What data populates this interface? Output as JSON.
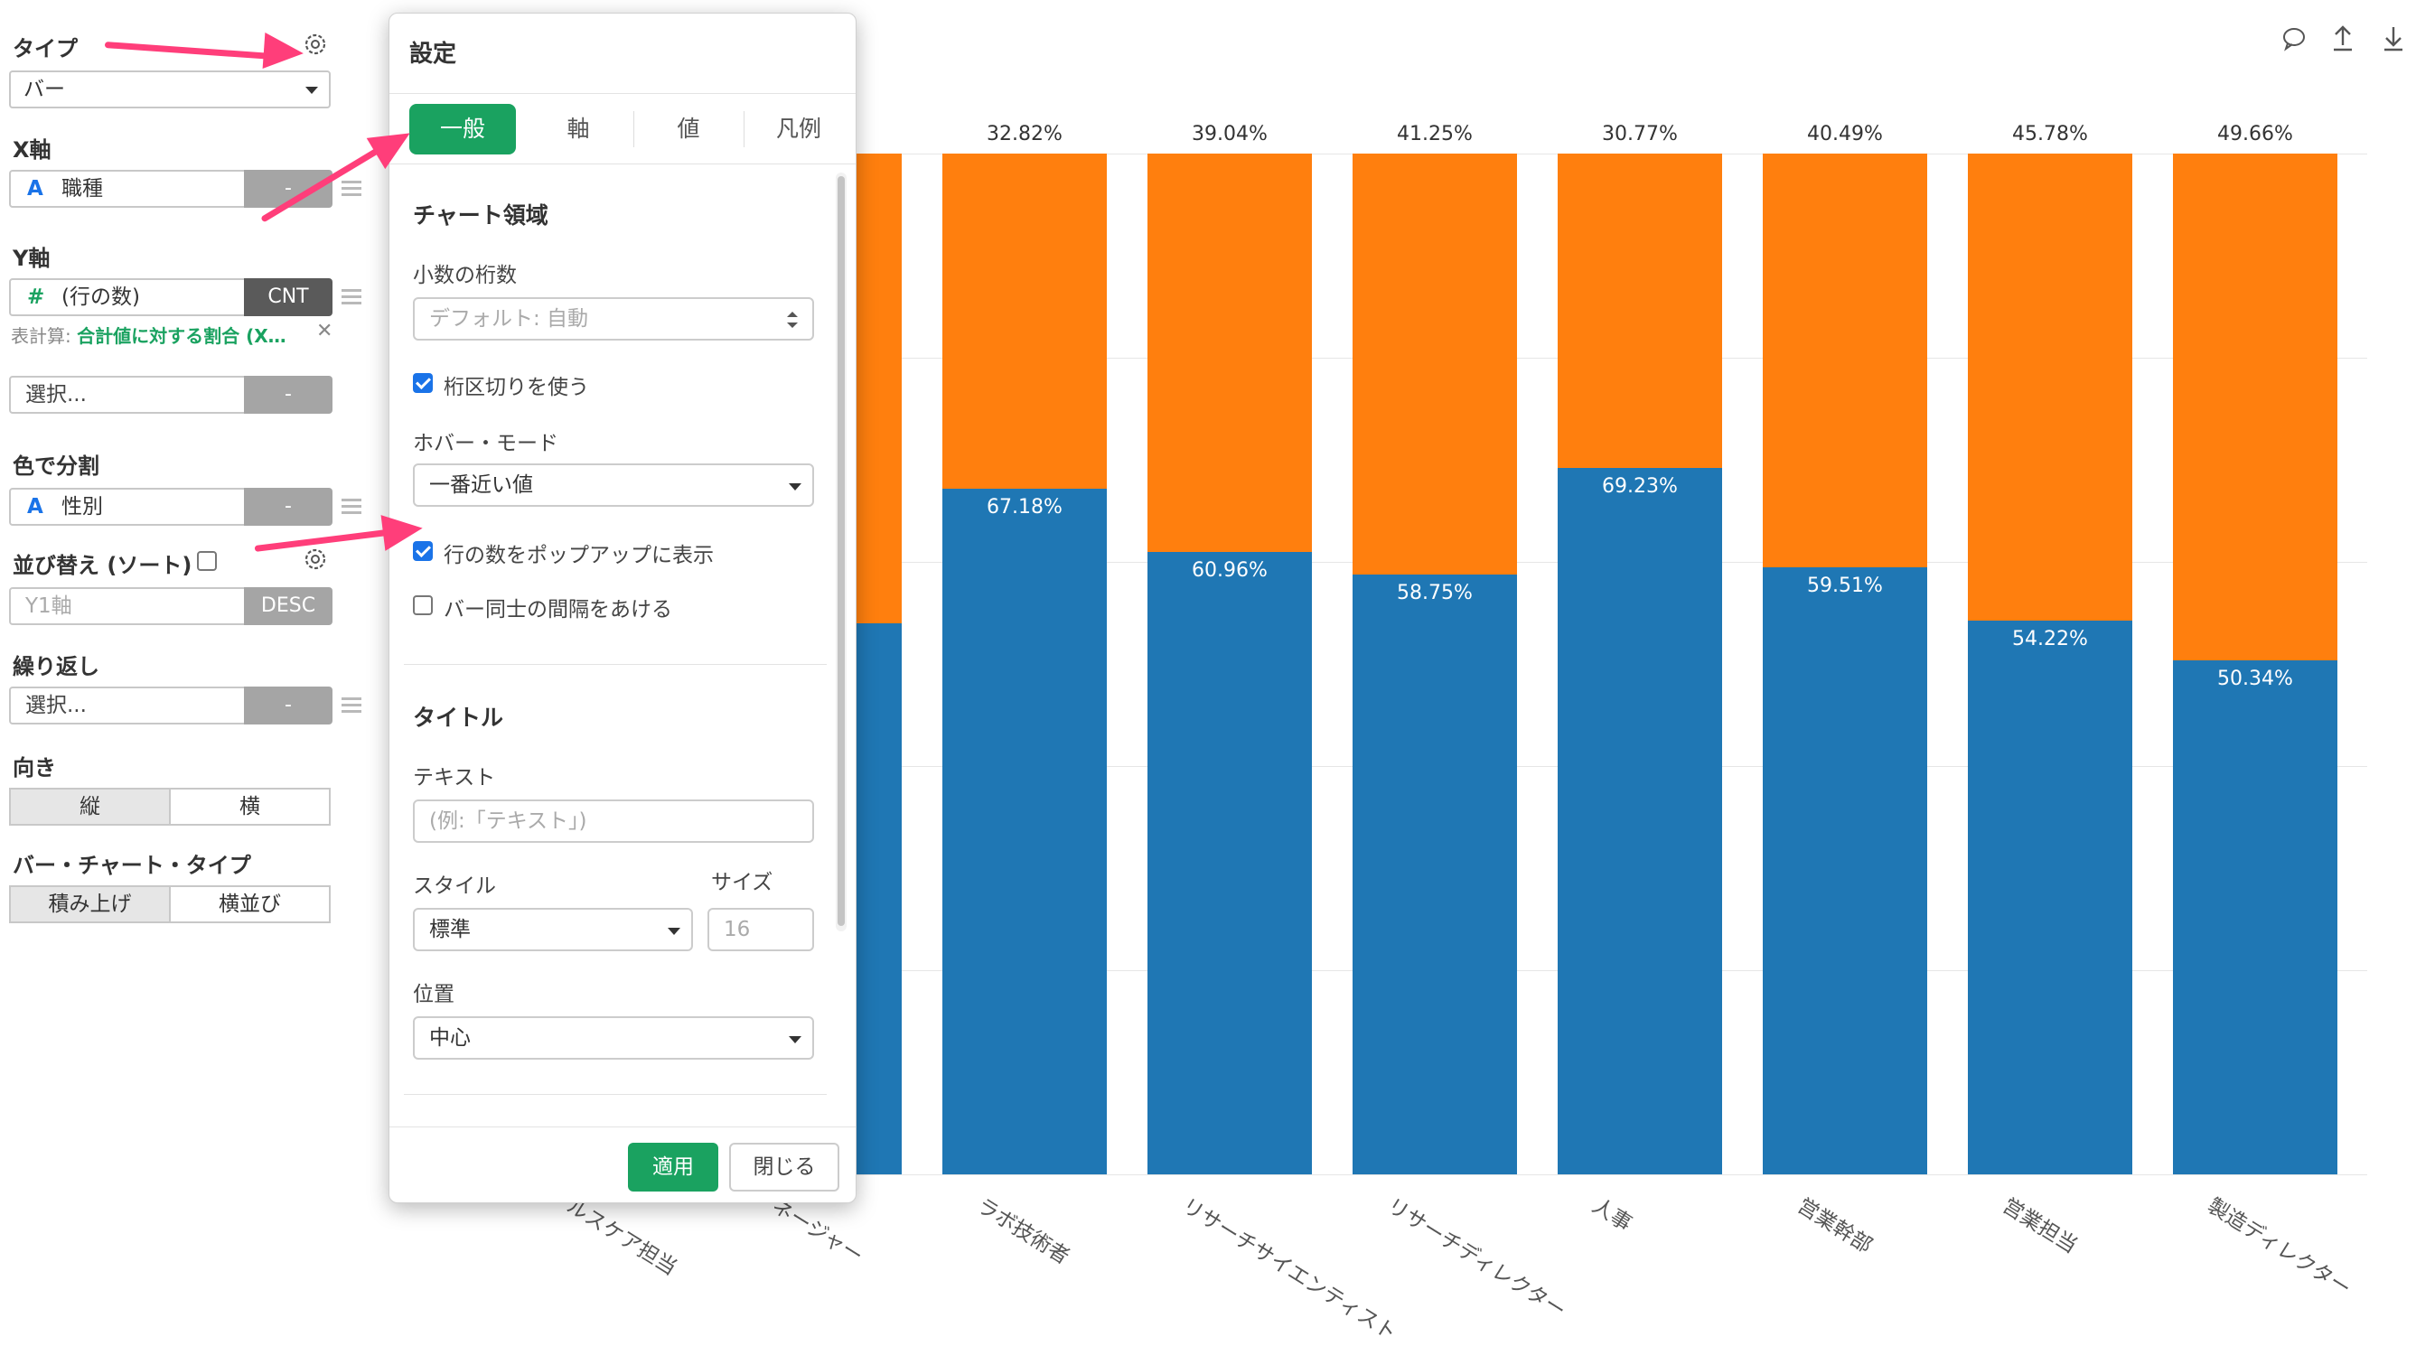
{
  "left_panel": {
    "type_label": "タイプ",
    "type_value": "バー",
    "x_axis_label": "X軸",
    "x_axis_field": "職種",
    "x_axis_agg": "-",
    "y_axis_label": "Y軸",
    "y_axis_field": "(行の数)",
    "y_axis_agg": "CNT",
    "table_calc_prefix": "表計算:",
    "table_calc_value": "合計値に対する割合 (X…",
    "y2_select": "選択...",
    "y2_agg": "-",
    "color_label": "色で分割",
    "color_field": "性別",
    "color_agg": "-",
    "sort_label": "並び替え (ソート)",
    "sort_field": "Y1軸",
    "sort_order": "DESC",
    "repeat_label": "繰り返し",
    "repeat_select": "選択...",
    "repeat_agg": "-",
    "orientation_label": "向き",
    "orientation_vertical": "縦",
    "orientation_horizontal": "横",
    "bar_type_label": "バー・チャート・タイプ",
    "bar_type_stacked": "積み上げ",
    "bar_type_side": "横並び"
  },
  "dialog": {
    "title": "設定",
    "tabs": [
      "一般",
      "軸",
      "値",
      "凡例"
    ],
    "active_tab": "一般",
    "section_chart_area": "チャート領域",
    "decimal_label": "小数の桁数",
    "decimal_placeholder": "デフォルト: 自動",
    "thousands_sep_label": "桁区切りを使う",
    "thousands_sep_checked": true,
    "hover_mode_label": "ホバー・モード",
    "hover_mode_value": "一番近い値",
    "popup_rows_label": "行の数をポップアップに表示",
    "popup_rows_checked": true,
    "bar_gap_label": "バー同士の間隔をあける",
    "bar_gap_checked": false,
    "section_title": "タイトル",
    "text_label": "テキスト",
    "text_placeholder": "(例:「テキスト」)",
    "style_label": "スタイル",
    "style_value": "標準",
    "size_label": "サイズ",
    "size_placeholder": "16",
    "position_label": "位置",
    "position_value": "中心",
    "apply_button": "適用",
    "close_button": "閉じる",
    "accent_color": "#1aa260"
  },
  "toolbar_icons": [
    "comment-icon",
    "upload-icon",
    "download-icon"
  ],
  "chart_data": {
    "type": "bar",
    "stacked": true,
    "categories": [
      "ヘルスケア担当",
      "マネージャー",
      "ラボ技術者",
      "リサーチサイエンティスト",
      "リサーチディレクター",
      "人事",
      "営業幹部",
      "営業担当",
      "製造ディレクター"
    ],
    "visible_tick_labels": [
      "ルスケア担当",
      "ネージャー",
      "ラボ技術者",
      "リサーチサイエンティスト",
      "リサーチディレクター",
      "人事",
      "営業幹部",
      "営業担当",
      "製造ディレクター"
    ],
    "series": [
      {
        "color": "#1f77b4",
        "values": [
          null,
          null,
          67.18,
          60.96,
          58.75,
          69.23,
          59.51,
          54.22,
          50.34
        ]
      },
      {
        "color": "#ff7f0e",
        "values": [
          null,
          null,
          32.82,
          39.04,
          41.25,
          30.77,
          40.49,
          45.78,
          49.66
        ]
      }
    ],
    "ylim": [
      0,
      100
    ],
    "value_unit": "%",
    "grid": true,
    "partial_bar_visible": {
      "category_index": 1,
      "blue": 54
    }
  }
}
